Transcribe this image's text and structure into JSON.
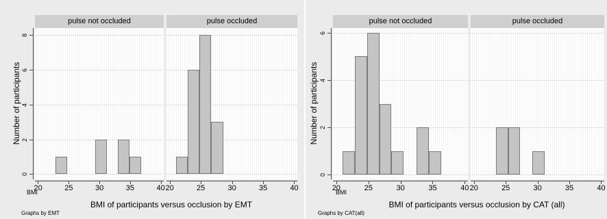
{
  "chart_data": [
    {
      "type": "bar",
      "ylabel": "Number of participants",
      "xlabel": "BMI of participants versus occlusion by EMT",
      "x_axis_var": "BMI",
      "note": "Graphs by EMT",
      "x_ticks": [
        20,
        25,
        30,
        35,
        40
      ],
      "y_ticks": [
        0,
        2,
        4,
        6,
        8
      ],
      "xlim": [
        19.5,
        40.5
      ],
      "ylim": [
        -0.3,
        8.4
      ],
      "bin_width": 1.9,
      "panels": [
        {
          "title": "pulse not occluded",
          "bins": [
            {
              "x": 22.9,
              "value": 1
            },
            {
              "x": 29.3,
              "value": 2
            },
            {
              "x": 33.0,
              "value": 2
            },
            {
              "x": 34.9,
              "value": 1
            }
          ]
        },
        {
          "title": "pulse occluded",
          "bins": [
            {
              "x": 21.0,
              "value": 1
            },
            {
              "x": 22.9,
              "value": 6
            },
            {
              "x": 24.8,
              "value": 8
            },
            {
              "x": 26.7,
              "value": 3
            }
          ]
        }
      ]
    },
    {
      "type": "bar",
      "ylabel": "Number of participants",
      "xlabel": "BMI of participants versus occlusion by CAT (all)",
      "x_axis_var": "BMI",
      "note": "Graphs by CAT(all)",
      "x_ticks": [
        20,
        25,
        30,
        35,
        40
      ],
      "y_ticks": [
        0,
        2,
        4,
        6
      ],
      "xlim": [
        19.5,
        40.5
      ],
      "ylim": [
        -0.2,
        6.2
      ],
      "bin_width": 1.9,
      "panels": [
        {
          "title": "pulse not occluded",
          "bins": [
            {
              "x": 21.0,
              "value": 1
            },
            {
              "x": 22.9,
              "value": 5
            },
            {
              "x": 24.8,
              "value": 6
            },
            {
              "x": 26.7,
              "value": 3
            },
            {
              "x": 28.6,
              "value": 1
            },
            {
              "x": 32.5,
              "value": 2
            },
            {
              "x": 34.4,
              "value": 1
            }
          ]
        },
        {
          "title": "pulse occluded",
          "bins": [
            {
              "x": 23.5,
              "value": 2
            },
            {
              "x": 25.4,
              "value": 2
            },
            {
              "x": 29.2,
              "value": 1
            }
          ]
        }
      ]
    }
  ]
}
